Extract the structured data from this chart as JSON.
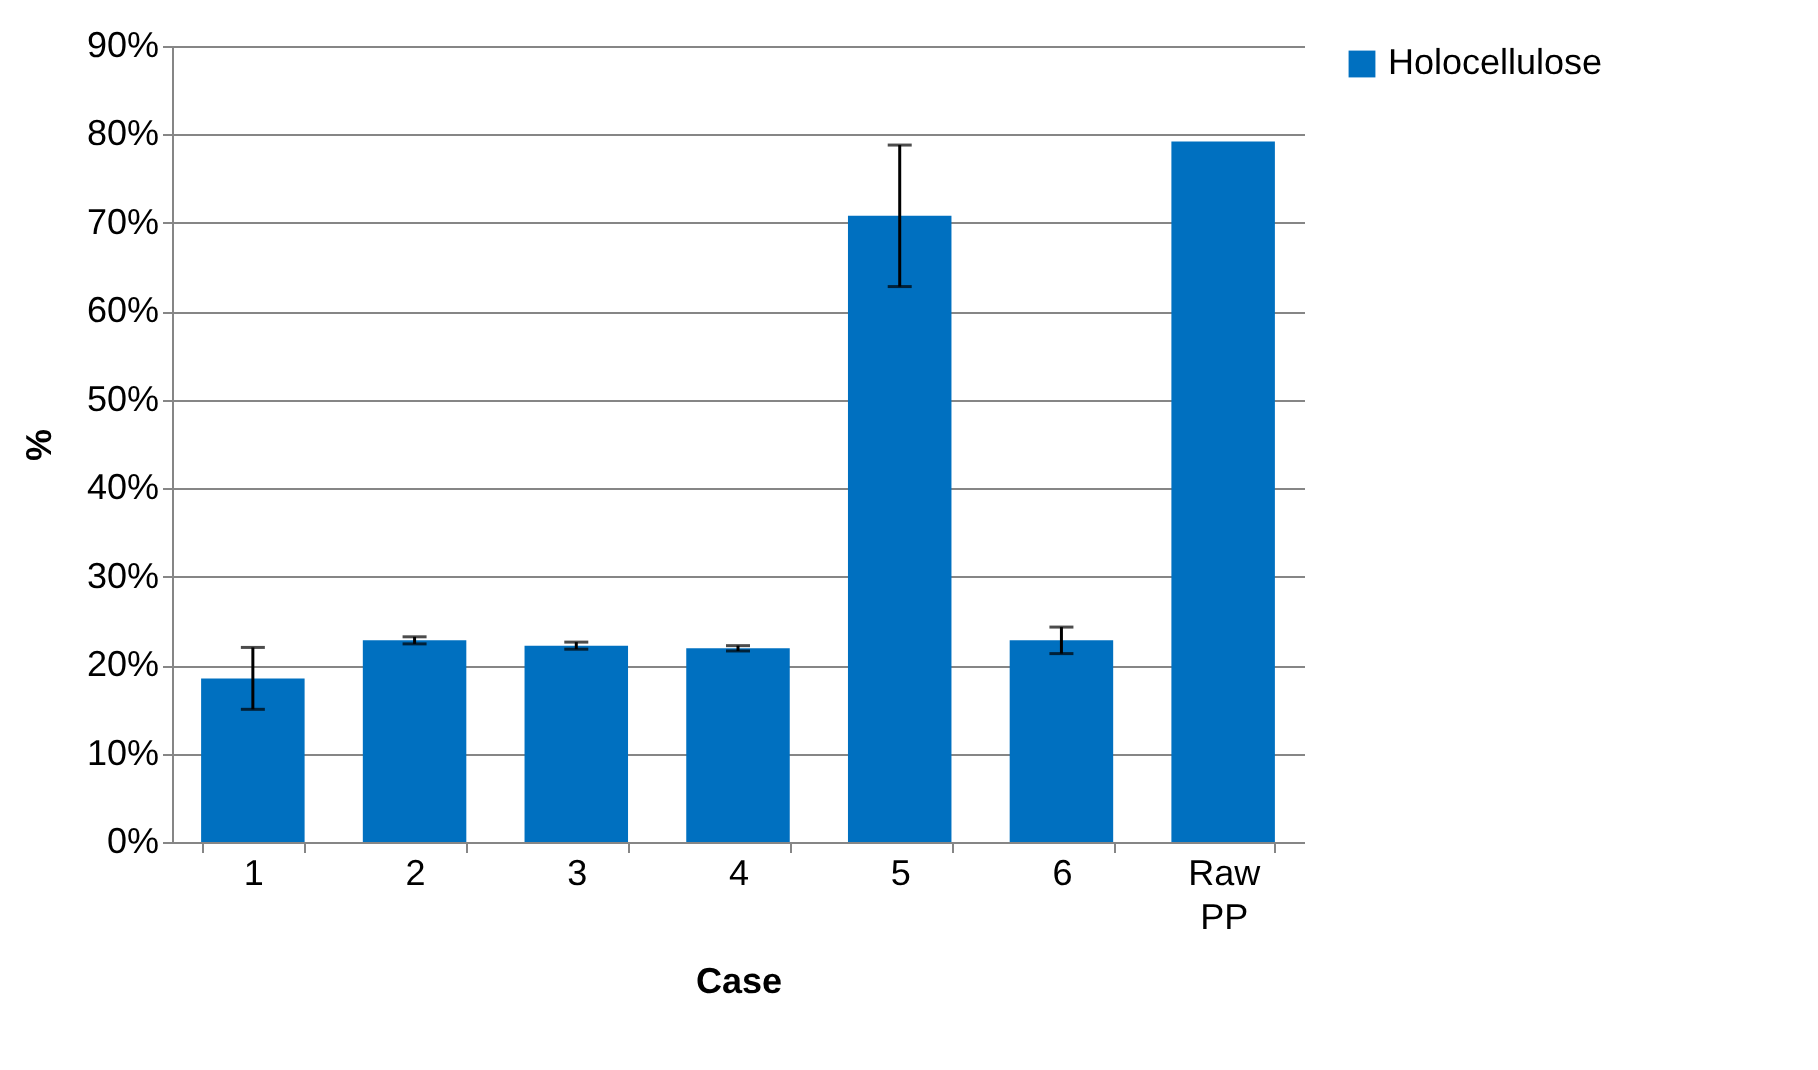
{
  "chart_data": {
    "type": "bar",
    "xlabel": "Case",
    "ylabel": "%",
    "categories": [
      "1",
      "2",
      "3",
      "4",
      "5",
      "6",
      "Raw PP"
    ],
    "series": [
      {
        "name": "Holocellulose",
        "color": "#0070c0",
        "values": [
          18.5,
          22.8,
          22.2,
          21.9,
          70.8,
          22.8,
          79.2
        ],
        "errors": [
          3.5,
          0.4,
          0.4,
          0.3,
          8,
          1.5,
          null
        ]
      }
    ],
    "ylim": [
      0,
      90
    ],
    "yticks": [
      {
        "value": 0,
        "label": "0%"
      },
      {
        "value": 10,
        "label": "10%"
      },
      {
        "value": 20,
        "label": "20%"
      },
      {
        "value": 30,
        "label": "30%"
      },
      {
        "value": 40,
        "label": "40%"
      },
      {
        "value": 50,
        "label": "50%"
      },
      {
        "value": 60,
        "label": "60%"
      },
      {
        "value": 70,
        "label": "70%"
      },
      {
        "value": 80,
        "label": "80%"
      },
      {
        "value": 90,
        "label": "90%"
      }
    ],
    "grid": "y",
    "legend": "right"
  }
}
